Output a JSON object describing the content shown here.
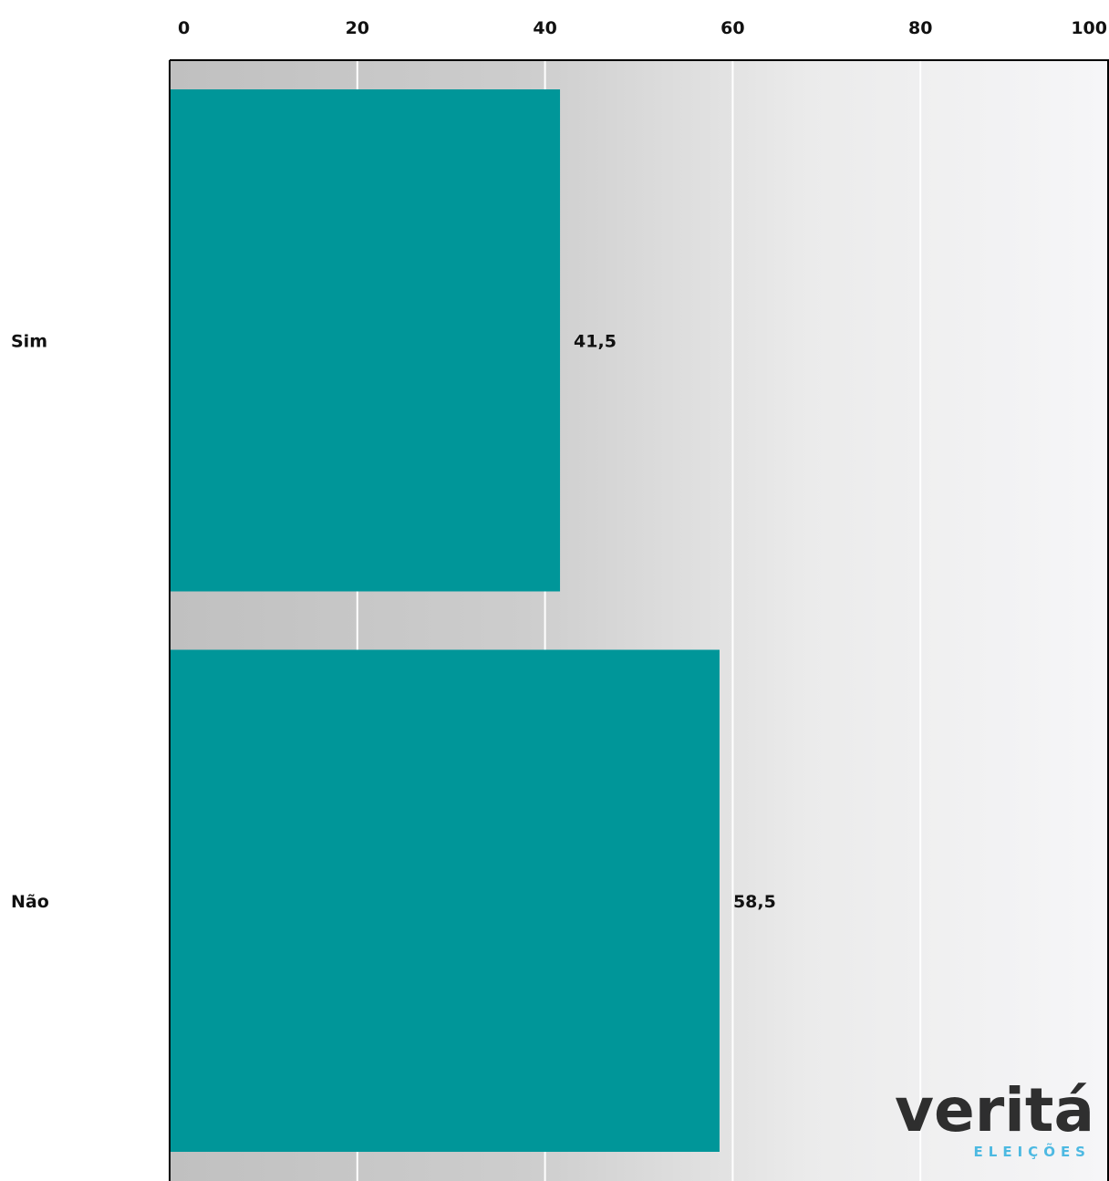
{
  "chart_data": {
    "type": "bar",
    "orientation": "horizontal",
    "categories": [
      "Sim",
      "Não"
    ],
    "values": [
      41.5,
      58.5
    ],
    "value_labels": [
      "41,5",
      "58,5"
    ],
    "xlim": [
      0,
      100
    ],
    "x_ticks": [
      "0",
      "20",
      "40",
      "60",
      "80",
      "100"
    ],
    "x_tick_values": [
      0,
      20,
      40,
      60,
      80,
      100
    ],
    "grid": true,
    "bar_color": "#009699",
    "title": "",
    "xlabel": "",
    "ylabel": ""
  },
  "watermark": {
    "brand": "veritá",
    "subtitle": "ELEIÇÕES",
    "brand_color": "#1a1a1a",
    "accent_color": "#3bb3e0"
  }
}
